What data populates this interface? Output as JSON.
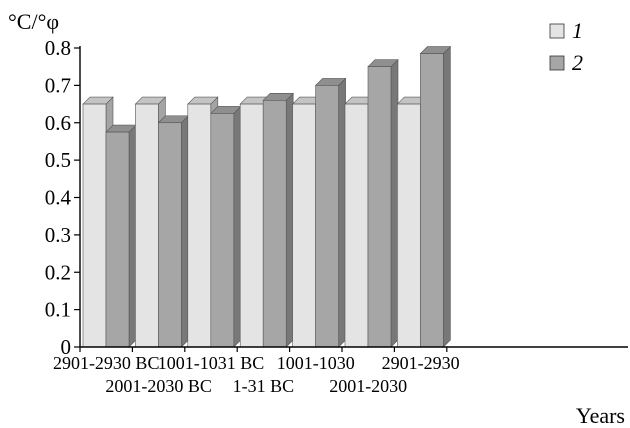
{
  "chart_data": {
    "type": "bar",
    "ylabel": "°C/°φ",
    "xlabel": "Years",
    "ylim": [
      0,
      0.8
    ],
    "yticks": [
      "0",
      "0.1",
      "0.2",
      "0.3",
      "0.4",
      "0.5",
      "0.6",
      "0.7",
      "0.8"
    ],
    "categories": [
      "2901-2930 BC",
      "2001-2030 BC",
      "1001-1031 BC",
      "1-31 BC",
      "1001-1030",
      "2001-2030",
      "2901-2930"
    ],
    "series": [
      {
        "name": "1",
        "values": [
          0.65,
          0.65,
          0.65,
          0.65,
          0.65,
          0.65,
          0.65
        ]
      },
      {
        "name": "2",
        "values": [
          0.575,
          0.6,
          0.625,
          0.66,
          0.7,
          0.75,
          0.785
        ]
      }
    ],
    "legend": "top-right",
    "grid": false,
    "colors": {
      "series1": "#e4e4e4",
      "series2": "#a6a6a6",
      "axis": "#000000"
    }
  }
}
